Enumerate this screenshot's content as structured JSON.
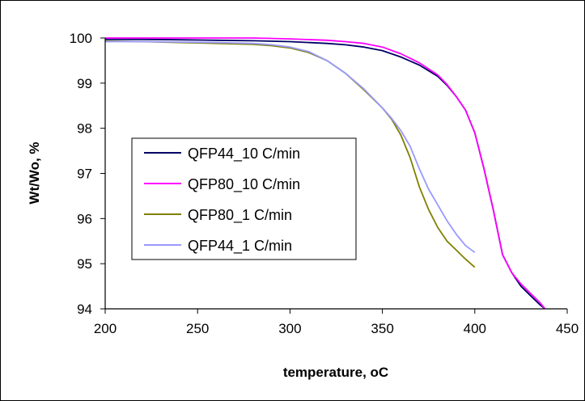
{
  "chart_data": {
    "type": "line",
    "title": "",
    "xlabel": "temperature, oC",
    "ylabel": "Wt/Wo, %",
    "xlim": [
      200,
      450
    ],
    "ylim": [
      94,
      100
    ],
    "xticks": [
      200,
      250,
      300,
      350,
      400,
      450
    ],
    "yticks": [
      94,
      95,
      96,
      97,
      98,
      99,
      100
    ],
    "grid": false,
    "legend_position": "left",
    "series": [
      {
        "name": "QFP44_10 C/min",
        "color": "#000066",
        "x": [
          200,
          220,
          240,
          260,
          280,
          300,
          320,
          330,
          340,
          350,
          360,
          370,
          380,
          385,
          390,
          395,
          400,
          405,
          410,
          415,
          420,
          425,
          430,
          435,
          438
        ],
        "y": [
          99.97,
          99.97,
          99.96,
          99.95,
          99.94,
          99.92,
          99.88,
          99.85,
          99.8,
          99.72,
          99.58,
          99.4,
          99.15,
          98.95,
          98.7,
          98.4,
          97.9,
          97.1,
          96.2,
          95.2,
          94.8,
          94.5,
          94.3,
          94.1,
          94.0
        ]
      },
      {
        "name": "QFP80_10 C/min",
        "color": "#ff00ff",
        "x": [
          200,
          220,
          240,
          260,
          280,
          300,
          320,
          330,
          340,
          350,
          360,
          370,
          380,
          385,
          390,
          395,
          400,
          405,
          410,
          415,
          420,
          425,
          430,
          435,
          438
        ],
        "y": [
          100.0,
          100.0,
          100.0,
          100.0,
          100.0,
          99.98,
          99.95,
          99.92,
          99.88,
          99.8,
          99.65,
          99.45,
          99.18,
          98.97,
          98.7,
          98.4,
          97.9,
          97.1,
          96.2,
          95.2,
          94.8,
          94.55,
          94.35,
          94.15,
          94.0
        ]
      },
      {
        "name": "QFP80_1 C/min",
        "color": "#808000",
        "x": [
          200,
          220,
          240,
          260,
          280,
          290,
          300,
          310,
          320,
          330,
          340,
          350,
          355,
          360,
          365,
          370,
          375,
          380,
          385,
          390,
          395,
          400
        ],
        "y": [
          99.93,
          99.92,
          99.9,
          99.88,
          99.86,
          99.83,
          99.78,
          99.68,
          99.5,
          99.22,
          98.85,
          98.45,
          98.2,
          97.85,
          97.35,
          96.7,
          96.2,
          95.8,
          95.5,
          95.3,
          95.1,
          94.92
        ]
      },
      {
        "name": "QFP44_1 C/min",
        "color": "#9999ff",
        "x": [
          200,
          220,
          240,
          260,
          280,
          290,
          300,
          310,
          320,
          330,
          340,
          350,
          355,
          360,
          365,
          370,
          375,
          380,
          385,
          390,
          395,
          400
        ],
        "y": [
          99.92,
          99.92,
          99.91,
          99.9,
          99.88,
          99.85,
          99.8,
          99.7,
          99.5,
          99.22,
          98.87,
          98.45,
          98.22,
          97.95,
          97.6,
          97.1,
          96.65,
          96.3,
          95.95,
          95.65,
          95.4,
          95.25
        ]
      }
    ]
  }
}
